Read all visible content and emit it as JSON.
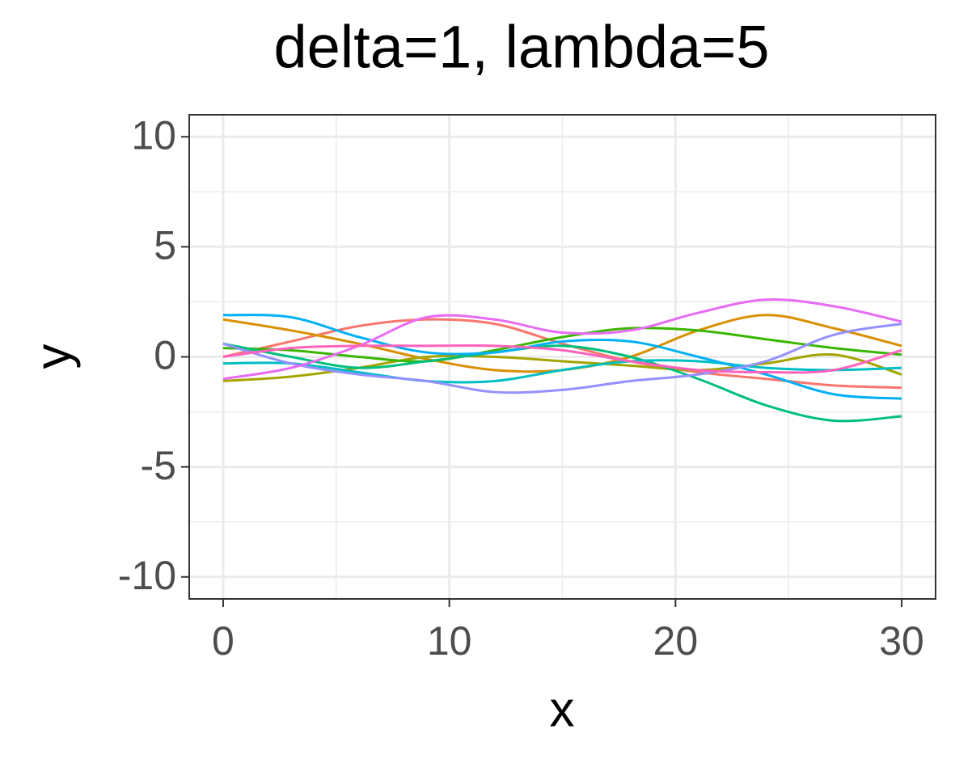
{
  "chart_data": {
    "type": "line",
    "title": "delta=1, lambda=5",
    "x_label": "x",
    "y_label": "y",
    "x": [
      0,
      3,
      6,
      9,
      12,
      15,
      18,
      21,
      24,
      27,
      30
    ],
    "series": [
      {
        "color": "#F8766D",
        "values": [
          0,
          0.7,
          1.4,
          1.7,
          1.5,
          0.6,
          -0.2,
          -0.7,
          -1.0,
          -1.3,
          -1.4
        ]
      },
      {
        "color": "#D89000",
        "values": [
          1.7,
          1.2,
          0.6,
          -0.1,
          -0.6,
          -0.6,
          0,
          1.2,
          1.9,
          1.3,
          0.5
        ]
      },
      {
        "color": "#A3A500",
        "values": [
          -1.1,
          -0.9,
          -0.5,
          0,
          0,
          -0.2,
          -0.4,
          -0.6,
          -0.3,
          0.1,
          -0.8
        ]
      },
      {
        "color": "#39B600",
        "values": [
          0.4,
          0.3,
          0,
          -0.2,
          0.3,
          0.9,
          1.3,
          1.2,
          0.8,
          0.4,
          0.1
        ]
      },
      {
        "color": "#00BF7D",
        "values": [
          0.6,
          0,
          -0.5,
          -0.2,
          0.2,
          0.5,
          0,
          -1.0,
          -2.2,
          -2.9,
          -2.7
        ]
      },
      {
        "color": "#00BFC4",
        "values": [
          -0.3,
          -0.3,
          -0.7,
          -1.1,
          -1.1,
          -0.6,
          -0.2,
          -0.2,
          -0.5,
          -0.6,
          -0.5
        ]
      },
      {
        "color": "#00B0F6",
        "values": [
          1.9,
          1.8,
          0.9,
          0.2,
          0.2,
          0.7,
          0.7,
          0,
          -0.8,
          -1.7,
          -1.9
        ]
      },
      {
        "color": "#9590FF",
        "values": [
          0.6,
          -0.3,
          -0.8,
          -1.1,
          -1.6,
          -1.5,
          -1.1,
          -0.8,
          -0.2,
          1.0,
          1.5
        ]
      },
      {
        "color": "#E76BF3",
        "values": [
          -1.0,
          -0.5,
          0.5,
          1.8,
          1.7,
          1.1,
          1.2,
          2.0,
          2.6,
          2.3,
          1.6
        ]
      },
      {
        "color": "#FF62BC",
        "values": [
          0,
          0.4,
          0.5,
          0.5,
          0.5,
          0.3,
          -0.2,
          -0.6,
          -0.7,
          -0.6,
          0.3
        ]
      }
    ],
    "xlim": [
      -1.5,
      31.5
    ],
    "ylim": [
      -11,
      11
    ],
    "xticks": [
      0,
      10,
      20,
      30
    ],
    "yticks": [
      -10,
      -5,
      0,
      5,
      10
    ],
    "xminor": [
      5,
      15,
      25
    ],
    "yminor": [
      -7.5,
      -2.5,
      2.5,
      7.5
    ],
    "grid": true
  }
}
